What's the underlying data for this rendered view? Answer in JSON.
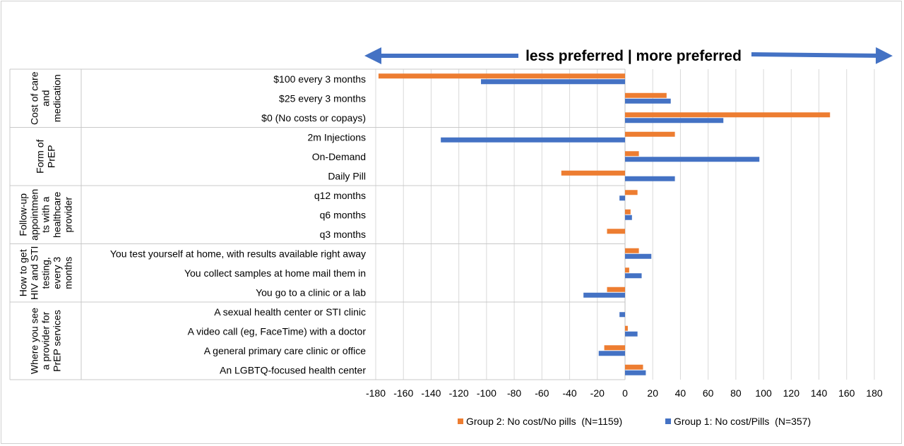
{
  "chart_data": {
    "type": "bar",
    "orientation": "horizontal",
    "header": "less preferred | more preferred",
    "xlim": [
      -180,
      180
    ],
    "xticks": [
      -180,
      -160,
      -140,
      -120,
      -100,
      -80,
      -60,
      -40,
      -20,
      0,
      20,
      40,
      60,
      80,
      100,
      120,
      140,
      160,
      180
    ],
    "grid": true,
    "legend_position": "bottom",
    "groups": [
      {
        "label": "Cost of care and medication",
        "label_lines": [
          "Cost of care",
          "and",
          "medication"
        ],
        "start": 0,
        "count": 3
      },
      {
        "label": "Form of PrEP",
        "label_lines": [
          "Form of",
          "PrEP"
        ],
        "start": 3,
        "count": 3
      },
      {
        "label": "Follow-up appointments with a healthcare provider",
        "label_lines": [
          "Follow-up",
          "appointmen",
          "ts with a",
          "healthcare",
          "provider"
        ],
        "start": 6,
        "count": 3
      },
      {
        "label": "How to get HIV and STI testing, every 3 months",
        "label_lines": [
          "How to get",
          "HIV and STI",
          "testing,",
          "every 3",
          "months"
        ],
        "start": 9,
        "count": 3
      },
      {
        "label": "Where you see a provider for PrEP services",
        "label_lines": [
          "Where you see",
          "a provider for",
          "PrEP services"
        ],
        "start": 12,
        "count": 4
      }
    ],
    "categories": [
      "$100 every 3 months",
      "$25 every 3 months",
      "$0 (No costs or copays)",
      "2m Injections",
      "On-Demand",
      "Daily Pill",
      "q12 months",
      "q6 months",
      "q3 months",
      "You test yourself at home, with results available right away",
      "You collect samples at home mail them in",
      "You go to a clinic or a lab",
      "A sexual health center or STI clinic",
      "A video call (eg, FaceTime) with a doctor",
      "A general primary care clinic or office",
      "An LGBTQ-focused health center"
    ],
    "series": [
      {
        "name": "Group 2: No cost/No pills  (N=1159)",
        "color": "#ED7D31",
        "values": [
          -178,
          30,
          148,
          36,
          10,
          -46,
          9,
          4,
          -13,
          10,
          3,
          -13,
          0,
          2,
          -15,
          13
        ]
      },
      {
        "name": "Group 1: No cost/Pills  (N=357)",
        "color": "#4472C4",
        "values": [
          -104,
          33,
          71,
          -133,
          97,
          36,
          -4,
          5,
          0,
          19,
          12,
          -30,
          -4,
          9,
          -19,
          15
        ]
      }
    ]
  }
}
